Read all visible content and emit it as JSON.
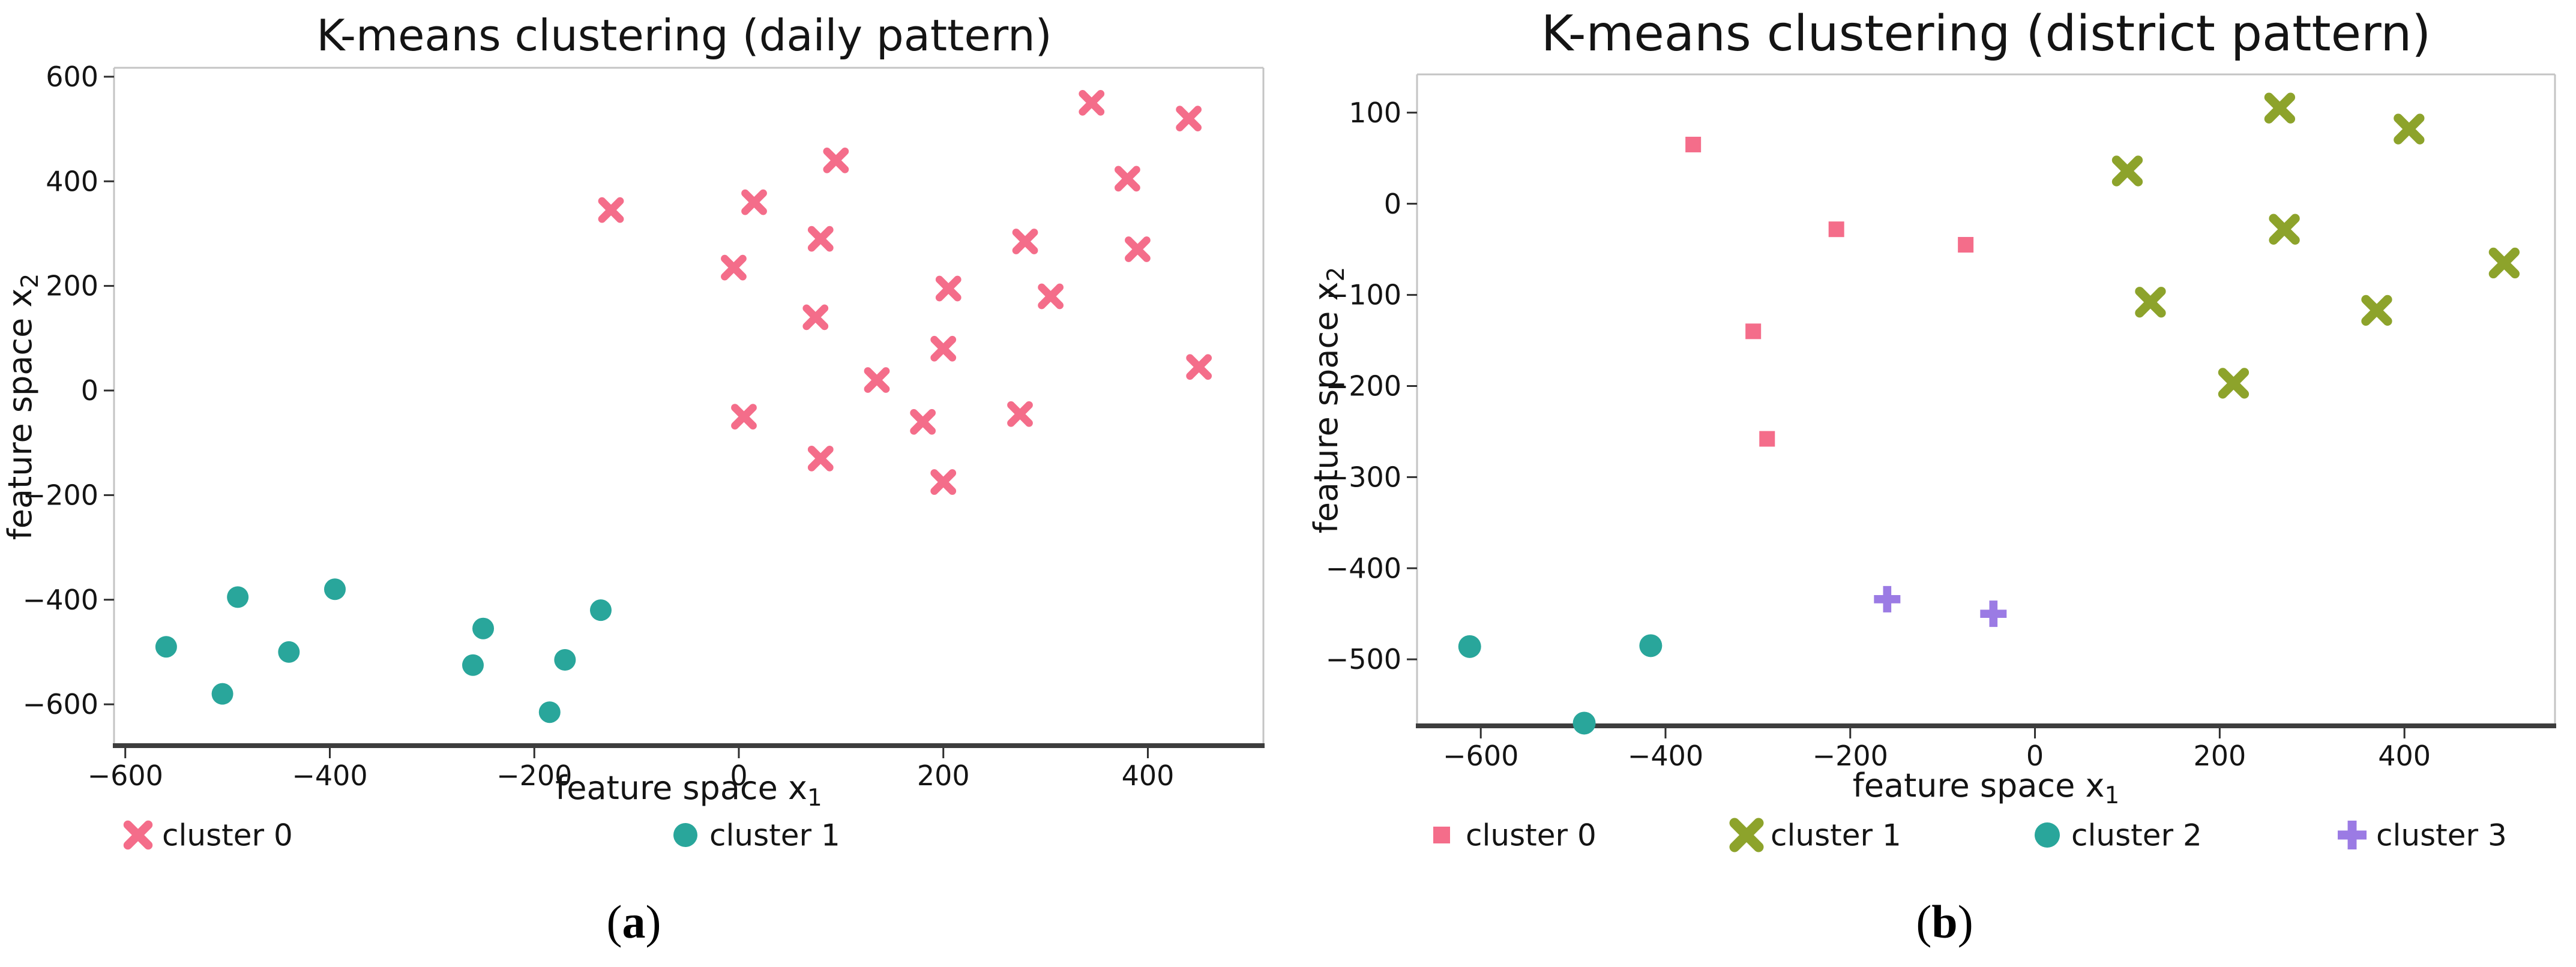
{
  "figures": [
    {
      "caption_open": "(",
      "caption_letter": "a",
      "caption_close": ")"
    },
    {
      "caption_open": "(",
      "caption_letter": "b",
      "caption_close": ")"
    }
  ],
  "colors": {
    "cluster_pink": "#f46d8a",
    "cluster_teal": "#29a69b",
    "cluster_olive": "#8da32b",
    "cluster_purple": "#9b7be4",
    "spine_light": "#c4c4c4",
    "spine_dark": "#3d3d3d",
    "tick": "#2e2e2e",
    "text": "#141414"
  },
  "chart_data": [
    {
      "type": "scatter",
      "title": "K-means clustering (daily pattern)",
      "xlabel": {
        "text": "feature space x",
        "sub": "1"
      },
      "ylabel": {
        "text": "feature space x",
        "sub": "2"
      },
      "xlim": [
        -611,
        513
      ],
      "ylim": [
        -679,
        617
      ],
      "xticks": [
        -600,
        -400,
        -200,
        0,
        200,
        400
      ],
      "yticks": [
        600,
        400,
        200,
        0,
        -200,
        -400,
        -600
      ],
      "grid": false,
      "legend_position": "below",
      "series": [
        {
          "name": "cluster 0",
          "marker": "x",
          "color": "#f46d8a",
          "size": 15,
          "points": [
            [
              345,
              550
            ],
            [
              440,
              520
            ],
            [
              95,
              440
            ],
            [
              380,
              405
            ],
            [
              15,
              360
            ],
            [
              -125,
              345
            ],
            [
              80,
              290
            ],
            [
              280,
              285
            ],
            [
              390,
              270
            ],
            [
              -5,
              235
            ],
            [
              205,
              195
            ],
            [
              305,
              180
            ],
            [
              75,
              140
            ],
            [
              200,
              80
            ],
            [
              450,
              45
            ],
            [
              135,
              20
            ],
            [
              275,
              -45
            ],
            [
              5,
              -50
            ],
            [
              180,
              -60
            ],
            [
              80,
              -130
            ],
            [
              200,
              -175
            ]
          ]
        },
        {
          "name": "cluster 1",
          "marker": "circle",
          "color": "#29a69b",
          "size": 18,
          "points": [
            [
              -560,
              -490
            ],
            [
              -505,
              -580
            ],
            [
              -490,
              -395
            ],
            [
              -440,
              -500
            ],
            [
              -395,
              -380
            ],
            [
              -260,
              -525
            ],
            [
              -250,
              -455
            ],
            [
              -185,
              -615
            ],
            [
              -170,
              -515
            ],
            [
              -135,
              -420
            ]
          ]
        }
      ]
    },
    {
      "type": "scatter",
      "title": "K-means clustering (district pattern)",
      "xlabel": {
        "text": "feature space x",
        "sub": "1"
      },
      "ylabel": {
        "text": "feature space x",
        "sub": "2"
      },
      "xlim": [
        -669,
        563
      ],
      "ylim": [
        -573,
        142
      ],
      "xticks": [
        -600,
        -400,
        -200,
        0,
        200,
        400
      ],
      "yticks": [
        100,
        0,
        -100,
        -200,
        -300,
        -400,
        -500
      ],
      "grid": false,
      "legend_position": "below",
      "series": [
        {
          "name": "cluster 0",
          "marker": "square",
          "color": "#f46d8a",
          "size": 26,
          "points": [
            [
              -370,
              65
            ],
            [
              -215,
              -28
            ],
            [
              -75,
              -45
            ],
            [
              -305,
              -140
            ],
            [
              -290,
              -258
            ]
          ]
        },
        {
          "name": "cluster 1",
          "marker": "x",
          "color": "#8da32b",
          "size": 18,
          "points": [
            [
              265,
              105
            ],
            [
              405,
              82
            ],
            [
              100,
              36
            ],
            [
              270,
              -28
            ],
            [
              508,
              -65
            ],
            [
              125,
              -108
            ],
            [
              370,
              -117
            ],
            [
              215,
              -197
            ]
          ]
        },
        {
          "name": "cluster 2",
          "marker": "circle",
          "color": "#29a69b",
          "size": 19,
          "points": [
            [
              -612,
              -486
            ],
            [
              -416,
              -485
            ],
            [
              -488,
              -570
            ]
          ]
        },
        {
          "name": "cluster 3",
          "marker": "plus",
          "color": "#9b7be4",
          "size": 22,
          "points": [
            [
              -160,
              -434
            ],
            [
              -45,
              -450
            ]
          ]
        }
      ]
    }
  ]
}
